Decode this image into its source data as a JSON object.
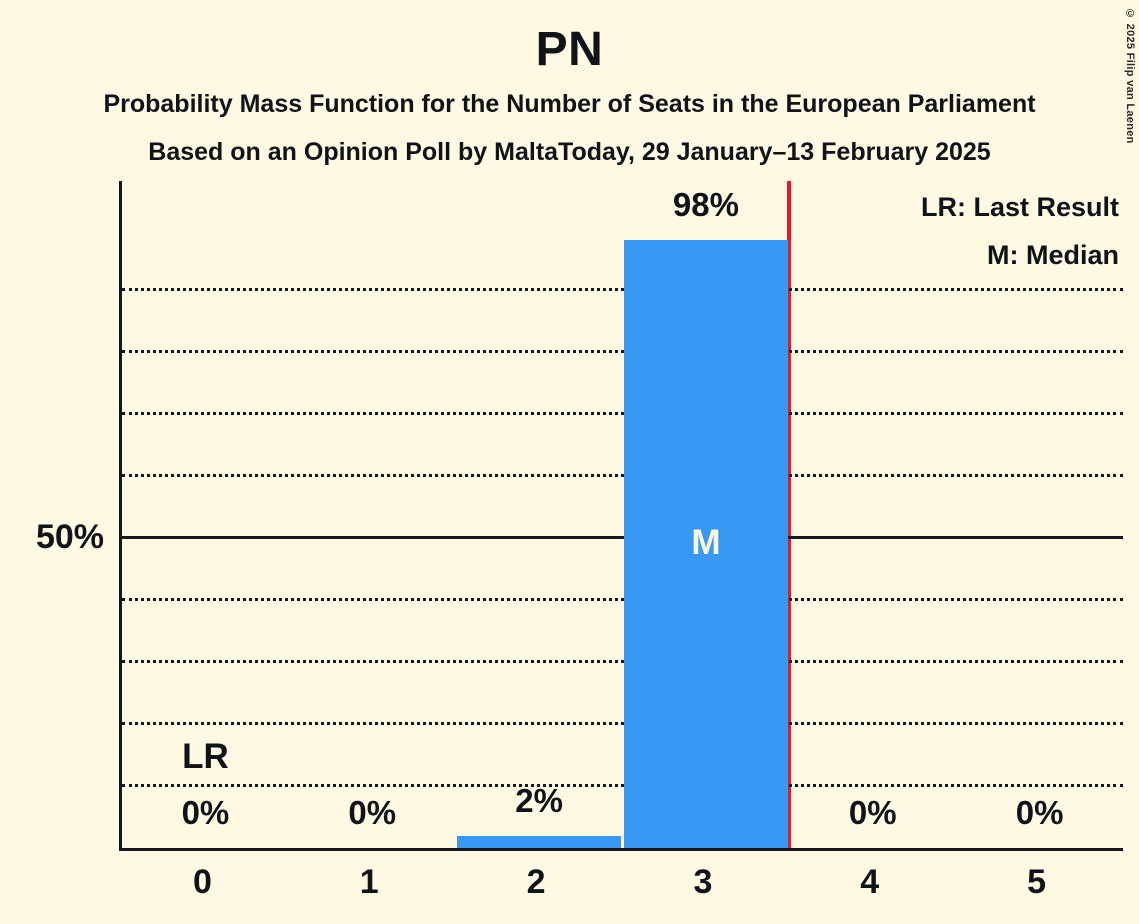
{
  "title": "PN",
  "subtitle1": "Probability Mass Function for the Number of Seats in the European Parliament",
  "subtitle2": "Based on an Opinion Poll by MaltaToday, 29 January–13 February 2025",
  "legend": {
    "last_result_label": "LR: Last Result",
    "median_label": "M: Median"
  },
  "copyright": "© 2025 Filip van Laenen",
  "colors": {
    "background": "#fdf9e3",
    "bar": "#3899f5",
    "red_line": "#f01428",
    "axis_text": "#101418",
    "marker_on_bar": "#fbf5de"
  },
  "chart_data": {
    "type": "bar",
    "title": "PN",
    "xlabel": "",
    "ylabel": "",
    "categories": [
      "0",
      "1",
      "2",
      "3",
      "4",
      "5"
    ],
    "values": [
      0,
      0,
      2,
      98,
      0,
      0
    ],
    "bar_labels": [
      "0%",
      "0%",
      "2%",
      "98%",
      "0%",
      "0%"
    ],
    "ylim": [
      0,
      107.6
    ],
    "ytick_labels": [
      {
        "value": 50,
        "label": "50%"
      }
    ],
    "gridlines_dotted_percent": [
      10,
      20,
      30,
      40,
      60,
      70,
      80,
      90
    ],
    "gridline_solid_percent": 50,
    "grid": "horizontal",
    "legend_position": "top-right",
    "median_category": "3",
    "median_marker": "M",
    "last_result_category": "0",
    "last_result_marker": "LR",
    "red_line_x": 3.5
  }
}
